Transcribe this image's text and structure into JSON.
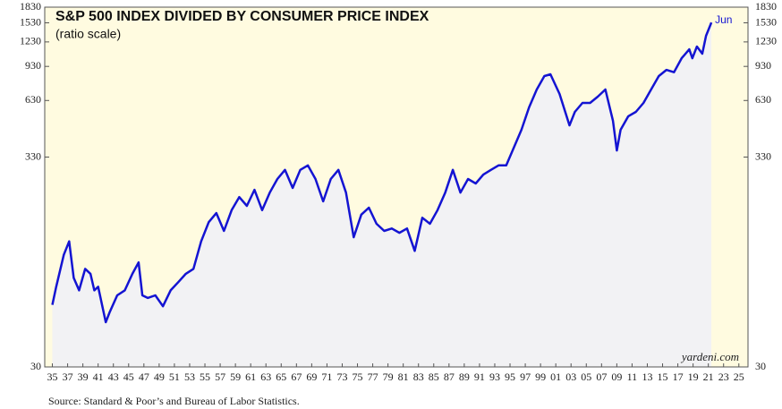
{
  "chart_data": {
    "type": "line",
    "title": "S&P 500 INDEX DIVIDED BY CONSUMER PRICE INDEX",
    "subtitle": "(ratio scale)",
    "source": "Source: Standard & Poor’s and Bureau of Labor Statistics.",
    "watermark": "yardeni.com",
    "end_label": "Jun",
    "log_scale": true,
    "color": "#1414d2",
    "x": [
      1935.0,
      1935.5,
      1936.5,
      1937.2,
      1937.8,
      1938.5,
      1939.3,
      1940.0,
      1940.5,
      1941.0,
      1942.0,
      1942.5,
      1943.5,
      1944.5,
      1945.5,
      1946.3,
      1946.8,
      1947.5,
      1948.5,
      1949.5,
      1950.5,
      1951.5,
      1952.5,
      1953.5,
      1954.5,
      1955.5,
      1956.5,
      1957.5,
      1958.5,
      1959.5,
      1960.5,
      1961.5,
      1962.5,
      1963.5,
      1964.5,
      1965.5,
      1966.5,
      1967.5,
      1968.5,
      1969.5,
      1970.5,
      1971.5,
      1972.5,
      1973.5,
      1974.5,
      1975.5,
      1976.5,
      1977.5,
      1978.5,
      1979.5,
      1980.5,
      1981.5,
      1982.5,
      1983.5,
      1984.5,
      1985.5,
      1986.5,
      1987.5,
      1988.5,
      1989.5,
      1990.5,
      1991.5,
      1992.5,
      1993.5,
      1994.5,
      1995.5,
      1996.5,
      1997.5,
      1998.5,
      1999.5,
      2000.3,
      2001.5,
      2002.8,
      2003.5,
      2004.5,
      2005.5,
      2006.5,
      2007.5,
      2008.5,
      2009.0,
      2009.5,
      2010.5,
      2011.5,
      2012.5,
      2013.5,
      2014.5,
      2015.5,
      2016.5,
      2017.5,
      2018.5,
      2018.9,
      2019.5,
      2020.2,
      2020.7,
      2021.4
    ],
    "values": [
      61,
      75,
      108,
      126,
      83,
      72,
      92,
      87,
      72,
      75,
      50,
      56,
      68,
      72,
      87,
      99,
      68,
      66,
      68,
      60,
      72,
      79,
      87,
      92,
      126,
      157,
      174,
      142,
      180,
      209,
      189,
      227,
      180,
      220,
      257,
      285,
      232,
      285,
      300,
      257,
      199,
      257,
      285,
      220,
      132,
      171,
      185,
      154,
      142,
      146,
      139,
      146,
      113,
      165,
      154,
      180,
      220,
      285,
      220,
      257,
      244,
      270,
      285,
      300,
      300,
      368,
      451,
      582,
      714,
      833,
      850,
      679,
      474,
      553,
      613,
      613,
      658,
      714,
      499,
      356,
      451,
      526,
      553,
      613,
      714,
      833,
      894,
      870,
      1021,
      1131,
      1021,
      1167,
      1075,
      1319,
      1537
    ],
    "xlim": [
      1934,
      2026.2
    ],
    "xticks": [
      {
        "value": 1935,
        "label": "35"
      },
      {
        "value": 1937,
        "label": "37"
      },
      {
        "value": 1939,
        "label": "39"
      },
      {
        "value": 1941,
        "label": "41"
      },
      {
        "value": 1943,
        "label": "43"
      },
      {
        "value": 1945,
        "label": "45"
      },
      {
        "value": 1947,
        "label": "47"
      },
      {
        "value": 1949,
        "label": "49"
      },
      {
        "value": 1951,
        "label": "51"
      },
      {
        "value": 1953,
        "label": "53"
      },
      {
        "value": 1955,
        "label": "55"
      },
      {
        "value": 1957,
        "label": "57"
      },
      {
        "value": 1959,
        "label": "59"
      },
      {
        "value": 1961,
        "label": "61"
      },
      {
        "value": 1963,
        "label": "63"
      },
      {
        "value": 1965,
        "label": "65"
      },
      {
        "value": 1967,
        "label": "67"
      },
      {
        "value": 1969,
        "label": "69"
      },
      {
        "value": 1971,
        "label": "71"
      },
      {
        "value": 1973,
        "label": "73"
      },
      {
        "value": 1975,
        "label": "75"
      },
      {
        "value": 1977,
        "label": "77"
      },
      {
        "value": 1979,
        "label": "79"
      },
      {
        "value": 1981,
        "label": "81"
      },
      {
        "value": 1983,
        "label": "83"
      },
      {
        "value": 1985,
        "label": "85"
      },
      {
        "value": 1987,
        "label": "87"
      },
      {
        "value": 1989,
        "label": "89"
      },
      {
        "value": 1991,
        "label": "91"
      },
      {
        "value": 1993,
        "label": "93"
      },
      {
        "value": 1995,
        "label": "95"
      },
      {
        "value": 1997,
        "label": "97"
      },
      {
        "value": 1999,
        "label": "99"
      },
      {
        "value": 2001,
        "label": "01"
      },
      {
        "value": 2003,
        "label": "03"
      },
      {
        "value": 2005,
        "label": "05"
      },
      {
        "value": 2007,
        "label": "07"
      },
      {
        "value": 2009,
        "label": "09"
      },
      {
        "value": 2011,
        "label": "11"
      },
      {
        "value": 2013,
        "label": "13"
      },
      {
        "value": 2015,
        "label": "15"
      },
      {
        "value": 2017,
        "label": "17"
      },
      {
        "value": 2019,
        "label": "19"
      },
      {
        "value": 2021,
        "label": "21"
      },
      {
        "value": 2023,
        "label": "23"
      },
      {
        "value": 2025,
        "label": "25"
      }
    ],
    "ylim": [
      30,
      1830
    ],
    "yticks": [
      30,
      330,
      630,
      930,
      1230,
      1530,
      1830
    ]
  }
}
